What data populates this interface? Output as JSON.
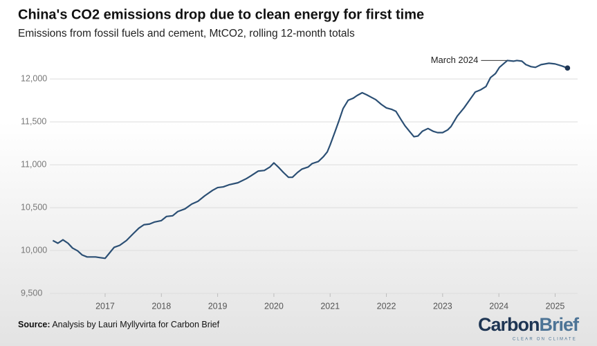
{
  "chart_data": {
    "type": "line",
    "title": "China's CO2 emissions drop due to clean energy for first time",
    "subtitle": "Emissions from fossil fuels and cement, MtCO2, rolling 12-month totals",
    "annotation": "March 2024",
    "source_label": "Source:",
    "source_text": "Analysis by Lauri Myllyvirta for Carbon Brief",
    "logo": {
      "first": "Carbon",
      "second": "Brief",
      "tagline": "CLEAR ON CLIMATE"
    },
    "grid": true,
    "xlim": [
      2015.5,
      2025.4
    ],
    "ylim": [
      9500,
      12300
    ],
    "xticks": [
      2017,
      2018,
      2019,
      2020,
      2021,
      2022,
      2023,
      2024,
      2025
    ],
    "yticks": [
      {
        "value": 9500,
        "label": "9,500"
      },
      {
        "value": 10000,
        "label": "10,000"
      },
      {
        "value": 10500,
        "label": "10,500"
      },
      {
        "value": 11000,
        "label": "11,000"
      },
      {
        "value": 11500,
        "label": "11,500"
      },
      {
        "value": 12000,
        "label": "12,000"
      }
    ],
    "x": [
      2016.07,
      2016.16,
      2016.25,
      2016.34,
      2016.42,
      2016.51,
      2016.59,
      2016.68,
      2016.83,
      2016.91,
      2017.0,
      2017.07,
      2017.16,
      2017.26,
      2017.38,
      2017.5,
      2017.6,
      2017.69,
      2017.79,
      2017.88,
      2018.0,
      2018.09,
      2018.2,
      2018.29,
      2018.42,
      2018.54,
      2018.65,
      2018.77,
      2018.91,
      2019.0,
      2019.1,
      2019.2,
      2019.36,
      2019.51,
      2019.59,
      2019.72,
      2019.83,
      2019.93,
      2020.0,
      2020.09,
      2020.17,
      2020.26,
      2020.33,
      2020.42,
      2020.5,
      2020.61,
      2020.68,
      2020.79,
      2020.88,
      2020.95,
      2021.0,
      2021.09,
      2021.16,
      2021.23,
      2021.32,
      2021.41,
      2021.48,
      2021.57,
      2021.65,
      2021.74,
      2021.81,
      2021.91,
      2022.0,
      2022.09,
      2022.17,
      2022.26,
      2022.33,
      2022.42,
      2022.49,
      2022.56,
      2022.64,
      2022.74,
      2022.83,
      2022.91,
      2023.0,
      2023.09,
      2023.15,
      2023.26,
      2023.38,
      2023.51,
      2023.58,
      2023.67,
      2023.77,
      2023.85,
      2023.94,
      2024.01,
      2024.15,
      2024.26,
      2024.32,
      2024.41,
      2024.48,
      2024.57,
      2024.65,
      2024.75,
      2024.89,
      2025.0,
      2025.12,
      2025.22
    ],
    "series": [
      {
        "name": "China CO2 emissions",
        "color": "#2b4f74",
        "values": [
          10117,
          10085,
          10125,
          10085,
          10029,
          9997,
          9949,
          9925,
          9925,
          9917,
          9909,
          9965,
          10037,
          10061,
          10117,
          10197,
          10261,
          10301,
          10309,
          10333,
          10349,
          10397,
          10405,
          10454,
          10486,
          10542,
          10574,
          10638,
          10702,
          10734,
          10742,
          10766,
          10790,
          10838,
          10870,
          10926,
          10934,
          10974,
          11022,
          10966,
          10910,
          10854,
          10854,
          10910,
          10950,
          10974,
          11014,
          11038,
          11094,
          11151,
          11231,
          11391,
          11519,
          11655,
          11752,
          11776,
          11808,
          11840,
          11816,
          11784,
          11760,
          11704,
          11663,
          11647,
          11623,
          11527,
          11455,
          11383,
          11327,
          11335,
          11391,
          11423,
          11391,
          11375,
          11375,
          11407,
          11447,
          11567,
          11663,
          11784,
          11848,
          11872,
          11912,
          12016,
          12064,
          12136,
          12216,
          12208,
          12216,
          12208,
          12168,
          12144,
          12136,
          12168,
          12184,
          12176,
          12152,
          12128
        ]
      }
    ]
  }
}
